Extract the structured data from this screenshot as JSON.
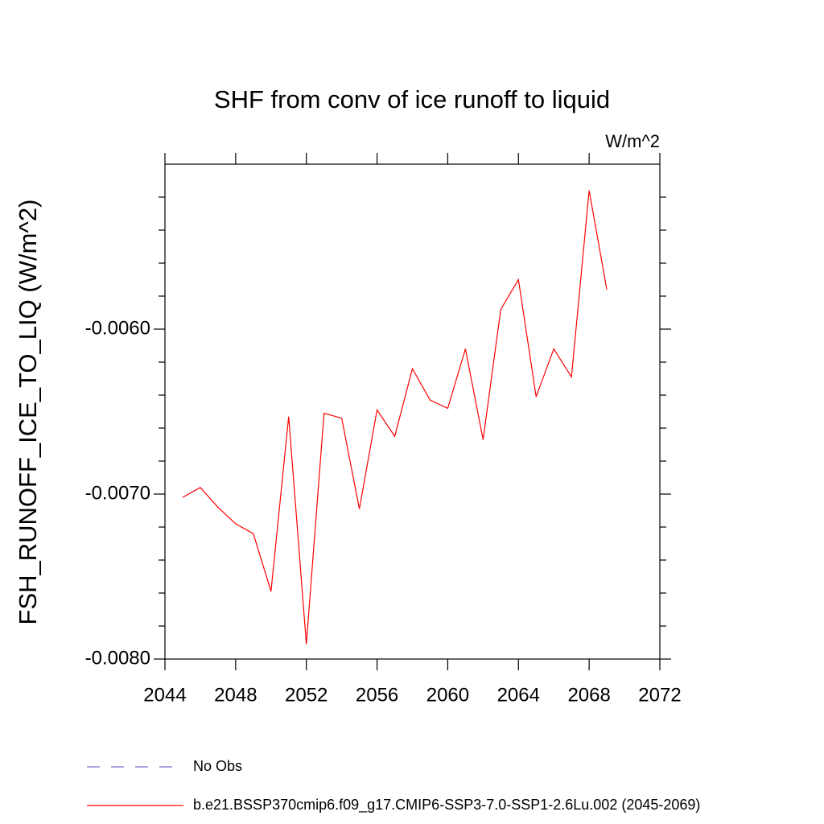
{
  "chart_data": {
    "type": "line",
    "title": "SHF from conv of ice runoff to liquid",
    "units_label": "W/m^2",
    "y_label": "FSH_RUNOFF_ICE_TO_LIQ  (W/m^2)",
    "x": [
      2045,
      2046,
      2047,
      2048,
      2049,
      2050,
      2051,
      2052,
      2053,
      2054,
      2055,
      2056,
      2057,
      2058,
      2059,
      2060,
      2061,
      2062,
      2063,
      2064,
      2065,
      2066,
      2067,
      2068,
      2069
    ],
    "series": [
      {
        "name": "No Obs",
        "color": "#7b68c8",
        "dashed": true,
        "values": [
          null,
          null,
          null,
          null,
          null,
          null,
          null,
          null,
          null,
          null,
          null,
          null,
          null,
          null,
          null,
          null,
          null,
          null,
          null,
          null,
          null,
          null,
          null,
          null,
          null
        ]
      },
      {
        "name": "b.e21.BSSP370cmip6.f09_g17.CMIP6-SSP3-7.0-SSP1-2.6Lu.002 (2045-2069)",
        "color": "#ff0000",
        "dashed": false,
        "values": [
          -0.00702,
          -0.00696,
          -0.00708,
          -0.00718,
          -0.00724,
          -0.00759,
          -0.00653,
          -0.00791,
          -0.00651,
          -0.00654,
          -0.00709,
          -0.00649,
          -0.00665,
          -0.00624,
          -0.00643,
          -0.00648,
          -0.00612,
          -0.00667,
          -0.00588,
          -0.0057,
          -0.00641,
          -0.00612,
          -0.00629,
          -0.00516,
          -0.00576
        ]
      }
    ],
    "xlim": [
      2044,
      2072
    ],
    "xticks": [
      2044,
      2048,
      2052,
      2056,
      2060,
      2064,
      2068,
      2072
    ],
    "ylim": [
      -0.008,
      -0.005
    ],
    "yticks": [
      {
        "value": -0.008,
        "label": "-0.0080"
      },
      {
        "value": -0.007,
        "label": "-0.0070"
      },
      {
        "value": -0.006,
        "label": "-0.0060"
      }
    ],
    "yminorticks": [
      -0.0078,
      -0.0076,
      -0.0074,
      -0.0072,
      -0.0068,
      -0.0066,
      -0.0064,
      -0.0062,
      -0.0058,
      -0.0056,
      -0.0054,
      -0.0052
    ],
    "grid": false
  }
}
